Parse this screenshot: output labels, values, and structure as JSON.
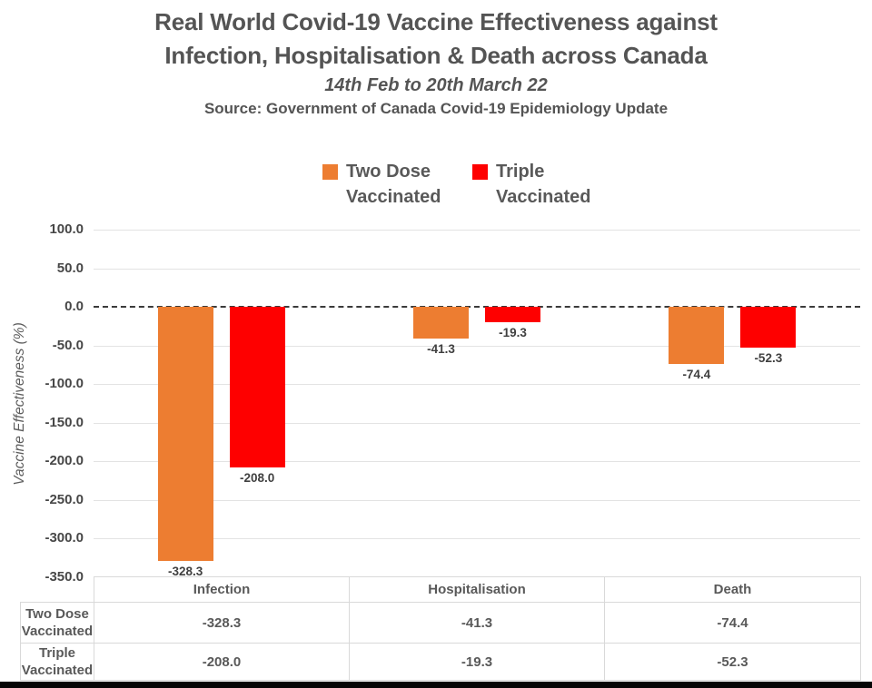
{
  "header": {
    "title_line1": "Real World Covid-19 Vaccine Effectiveness against",
    "title_line2": "Infection, Hospitalisation & Death across Canada",
    "subtitle": "14th Feb to 20th March 22",
    "source": "Source: Government of Canada Covid-19 Epidemiology Update"
  },
  "chart_data": {
    "type": "bar",
    "title": "Real World Covid-19 Vaccine Effectiveness against Infection, Hospitalisation & Death across Canada",
    "subtitle": "14th Feb to 20th March 22",
    "source": "Source: Government of Canada Covid-19 Epidemiology Update",
    "categories": [
      "Infection",
      "Hospitalisation",
      "Death"
    ],
    "series": [
      {
        "name": "Two Dose Vaccinated",
        "name_lines": [
          "Two Dose",
          "Vaccinated"
        ],
        "color": "#ED7D31",
        "values": [
          -328.3,
          -41.3,
          -74.4
        ]
      },
      {
        "name": "Triple Vaccinated",
        "name_lines": [
          "Triple",
          "Vaccinated"
        ],
        "color": "#FE0000",
        "values": [
          -208.0,
          -19.3,
          -52.3
        ]
      }
    ],
    "xlabel": "",
    "ylabel": "Vaccine Effectiveness (%)",
    "ylim": [
      -350,
      100
    ],
    "yticks": [
      100,
      50,
      0,
      -50,
      -100,
      -150,
      -200,
      -250,
      -300,
      -350
    ],
    "tick_decimals": 1,
    "grid": true,
    "zero_line_style": "dashed",
    "legend_position": "top",
    "data_labels": true,
    "data_table": true
  },
  "colors": {
    "title_text": "#545454",
    "body_text": "#595959",
    "tick_text": "#474747",
    "gridline": "#E3E3E3",
    "table_border": "#D9D9D9",
    "zero_line": "#3B3B3B",
    "background": "#FFFFFF",
    "bottom_bar": "#060606"
  }
}
